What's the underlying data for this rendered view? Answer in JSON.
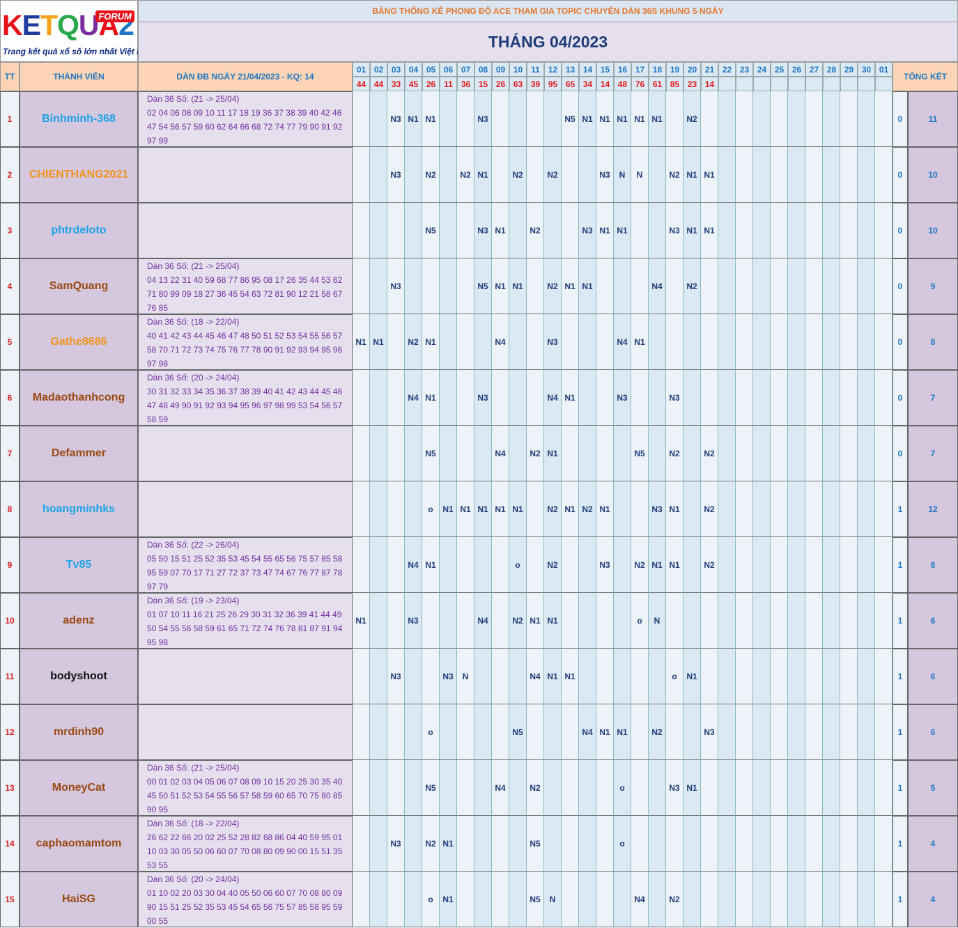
{
  "logo": {
    "text": "KETQUA2",
    "badge": "FORUM",
    "tagline": "Trang kết quả xổ số lớn nhất Việt Nam"
  },
  "banner": "BẢNG THỐNG KÊ PHONG ĐỘ ACE THAM GIA TOPIC CHUYÊN DÀN 36S KHUNG 5 NGÀY",
  "month_title": "THÁNG 04/2023",
  "headers": {
    "tt": "TT",
    "member": "THÀNH VIÊN",
    "dan": "DÀN ĐB NGÀY 21/04/2023 - KQ: 14",
    "summary": "TỔNG KẾT"
  },
  "days": [
    "01",
    "02",
    "03",
    "04",
    "05",
    "06",
    "07",
    "08",
    "09",
    "10",
    "11",
    "12",
    "13",
    "14",
    "15",
    "16",
    "17",
    "18",
    "19",
    "20",
    "21",
    "22",
    "23",
    "24",
    "25",
    "26",
    "27",
    "28",
    "29",
    "30",
    "01"
  ],
  "results": [
    "44",
    "44",
    "33",
    "45",
    "26",
    "11",
    "36",
    "15",
    "26",
    "63",
    "39",
    "95",
    "65",
    "34",
    "14",
    "48",
    "76",
    "61",
    "85",
    "23",
    "14",
    "",
    "",
    "",
    "",
    "",
    "",
    "",
    "",
    "",
    ""
  ],
  "colors": {
    "blue_name": "#1ea4e6",
    "orange_name": "#f0941c",
    "brown_name": "#9b4a12",
    "black_name": "#111111"
  },
  "rows": [
    {
      "tt": "1",
      "name": "Binhminh-368",
      "color": "#1ea4e6",
      "dan": [
        "Dàn 36 Số: (21 -> 25/04)",
        "02 04 06 08 09 10 11 17 18 19 36 37 38 39 40 42 46",
        "47 54 56 57 59 60 62 64 66 68 72 74 77 79 90 91 92",
        "97 99"
      ],
      "marks": {
        "3": "N3",
        "4": "N1",
        "5": "N1",
        "8": "N3",
        "13": "N5",
        "14": "N1",
        "15": "N1",
        "16": "N1",
        "17": "N1",
        "18": "N1",
        "20": "N2"
      },
      "s1": "0",
      "s2": "11"
    },
    {
      "tt": "2",
      "name": "CHIENTHANG2021",
      "color": "#f0941c",
      "dan": [],
      "marks": {
        "3": "N3",
        "5": "N2",
        "7": "N2",
        "8": "N1",
        "10": "N2",
        "12": "N2",
        "15": "N3",
        "16": "N",
        "17": "N",
        "19": "N2",
        "20": "N1",
        "21": "N1"
      },
      "s1": "0",
      "s2": "10"
    },
    {
      "tt": "3",
      "name": "phtrdeloto",
      "color": "#1ea4e6",
      "dan": [],
      "marks": {
        "5": "N5",
        "8": "N3",
        "9": "N1",
        "11": "N2",
        "14": "N3",
        "15": "N1",
        "16": "N1",
        "19": "N3",
        "20": "N1",
        "21": "N1"
      },
      "s1": "0",
      "s2": "10"
    },
    {
      "tt": "4",
      "name": "SamQuang",
      "color": "#9b4a12",
      "dan": [
        "Dàn 36 Số: (21 -> 25/04)",
        "04 13 22 31 40 59 68 77 86 95 08 17 26 35 44 53 62",
        "71 80 99 09 18 27 36 45 54 63 72 81 90 12 21 58 67",
        "76 85"
      ],
      "marks": {
        "3": "N3",
        "8": "N5",
        "9": "N1",
        "10": "N1",
        "12": "N2",
        "13": "N1",
        "14": "N1",
        "18": "N4",
        "20": "N2"
      },
      "s1": "0",
      "s2": "9"
    },
    {
      "tt": "5",
      "name": "Gathe8686",
      "color": "#f0941c",
      "dan": [
        "Dàn 36 Số: (18 -> 22/04)",
        "40 41 42 43 44 45 46 47 48 50 51 52 53 54 55 56 57",
        "58 70 71 72 73 74 75 76 77 78 90 91 92 93 94 95 96",
        "97 98"
      ],
      "marks": {
        "1": "N1",
        "2": "N1",
        "4": "N2",
        "5": "N1",
        "9": "N4",
        "12": "N3",
        "16": "N4",
        "17": "N1"
      },
      "s1": "0",
      "s2": "8"
    },
    {
      "tt": "6",
      "name": "Madaothanhcong",
      "color": "#9b4a12",
      "dan": [
        "Dàn 36 Số: (20 -> 24/04)",
        "30 31 32 33 34 35 36 37 38 39 40 41 42 43 44 45 46",
        "47 48 49 90 91 92 93 94 95 96 97 98 99 53 54 56 57",
        "58 59"
      ],
      "marks": {
        "4": "N4",
        "5": "N1",
        "8": "N3",
        "12": "N4",
        "13": "N1",
        "16": "N3",
        "19": "N3"
      },
      "s1": "0",
      "s2": "7"
    },
    {
      "tt": "7",
      "name": "Defammer",
      "color": "#9b4a12",
      "dan": [],
      "marks": {
        "5": "N5",
        "9": "N4",
        "11": "N2",
        "12": "N1",
        "17": "N5",
        "19": "N2",
        "21": "N2"
      },
      "s1": "0",
      "s2": "7"
    },
    {
      "tt": "8",
      "name": "hoangminhks",
      "color": "#1ea4e6",
      "dan": [],
      "marks": {
        "5": "o",
        "6": "N1",
        "7": "N1",
        "8": "N1",
        "9": "N1",
        "10": "N1",
        "12": "N2",
        "13": "N1",
        "14": "N2",
        "15": "N1",
        "18": "N3",
        "19": "N1",
        "21": "N2"
      },
      "s1": "1",
      "s2": "12"
    },
    {
      "tt": "9",
      "name": "Tv85",
      "color": "#1ea4e6",
      "dan": [
        "Dàn 36 Số: (22 -> 26/04)",
        "05 50 15 51 25 52 35 53 45 54 55 65 56 75 57 85 58",
        "95 59 07 70 17 71 27 72 37 73 47 74 67 76 77 87 78",
        "97 79"
      ],
      "marks": {
        "4": "N4",
        "5": "N1",
        "10": "o",
        "12": "N2",
        "15": "N3",
        "17": "N2",
        "18": "N1",
        "19": "N1",
        "21": "N2"
      },
      "s1": "1",
      "s2": "8"
    },
    {
      "tt": "10",
      "name": "adenz",
      "color": "#9b4a12",
      "dan": [
        "Dàn 36 Số: (19 -> 23/04)",
        "01 07 10 11 16 21 25 26 29 30 31 32 36 39 41 44 49",
        "50 54 55 56 58 59 61 65 71 72 74 76 78 81 87 91 94",
        "95 98"
      ],
      "marks": {
        "1": "N1",
        "4": "N3",
        "8": "N4",
        "10": "N2",
        "11": "N1",
        "12": "N1",
        "17": "o",
        "18": "N"
      },
      "s1": "1",
      "s2": "6"
    },
    {
      "tt": "11",
      "name": "bodyshoot",
      "color": "#111111",
      "dan": [],
      "marks": {
        "3": "N3",
        "6": "N3",
        "7": "N",
        "11": "N4",
        "12": "N1",
        "13": "N1",
        "19": "o",
        "20": "N1"
      },
      "s1": "1",
      "s2": "6"
    },
    {
      "tt": "12",
      "name": "mrdinh90",
      "color": "#9b4a12",
      "dan": [],
      "marks": {
        "5": "o",
        "10": "N5",
        "14": "N4",
        "15": "N1",
        "16": "N1",
        "18": "N2",
        "21": "N3"
      },
      "s1": "1",
      "s2": "6"
    },
    {
      "tt": "13",
      "name": "MoneyCat",
      "color": "#9b4a12",
      "dan": [
        "Dàn 36 Số: (21 -> 25/04)",
        "00 01 02 03 04 05 06 07 08 09 10 15 20 25 30 35 40",
        "45 50 51 52 53 54 55 56 57 58 59 60 65 70 75 80 85",
        "90 95"
      ],
      "marks": {
        "5": "N5",
        "9": "N4",
        "11": "N2",
        "16": "o",
        "19": "N3",
        "20": "N1"
      },
      "s1": "1",
      "s2": "5"
    },
    {
      "tt": "14",
      "name": "caphaomamtom",
      "color": "#9b4a12",
      "dan": [
        "Dàn 36 Số: (18 -> 22/04)",
        "26 62 22 66 20 02 25 52 28 82 68 86 04 40 59 95 01",
        "10 03 30 05 50 06 60 07 70 08 80 09 90 00 15 51 35",
        "53 55"
      ],
      "marks": {
        "3": "N3",
        "5": "N2",
        "6": "N1",
        "11": "N5",
        "16": "o"
      },
      "s1": "1",
      "s2": "4"
    },
    {
      "tt": "15",
      "name": "HaiSG",
      "color": "#9b4a12",
      "dan": [
        "Dàn 36 Số: (20 -> 24/04)",
        "01 10 02 20 03 30 04 40 05 50 06 60 07 70 08 80 09",
        "90 15 51 25 52 35 53 45 54 65 56 75 57 85 58 95 59",
        "00 55"
      ],
      "marks": {
        "5": "o",
        "6": "N1",
        "11": "N5",
        "12": "N",
        "17": "N4",
        "19": "N2"
      },
      "s1": "1",
      "s2": "4"
    }
  ]
}
